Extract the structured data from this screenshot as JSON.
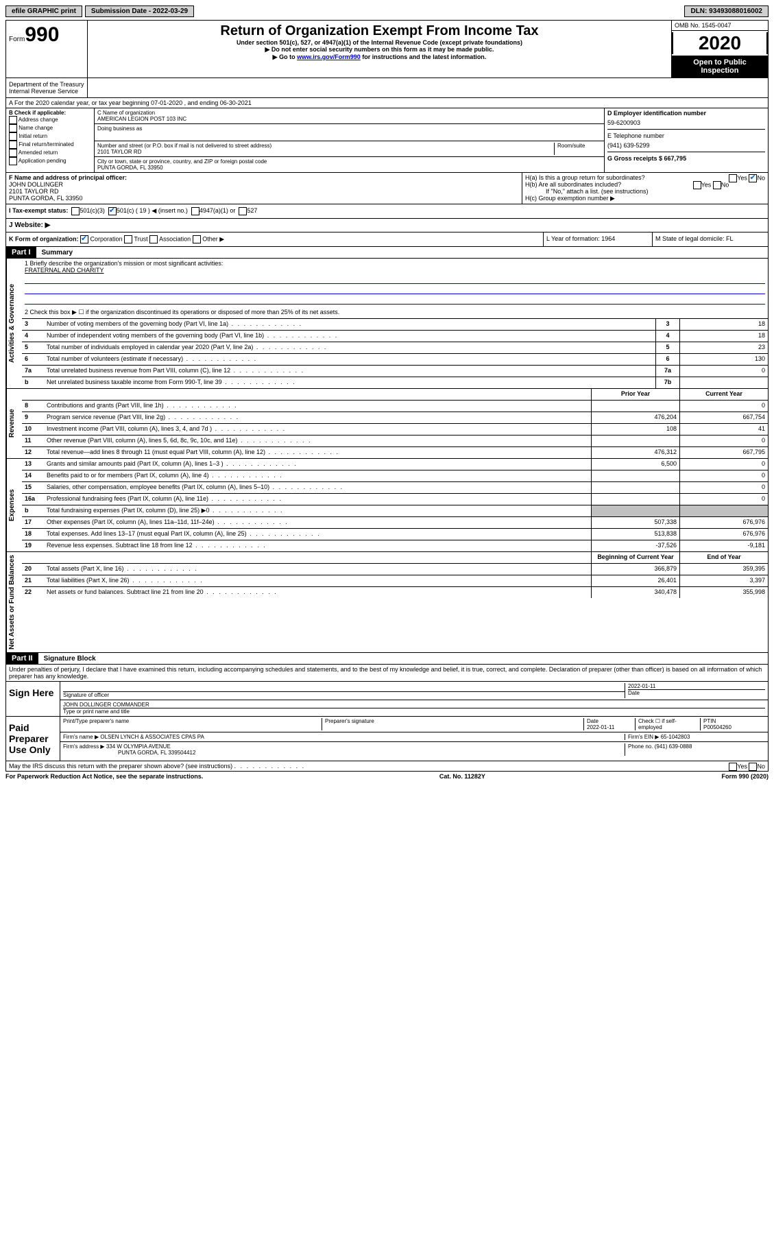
{
  "topbar": {
    "efile": "efile GRAPHIC print",
    "submission_label": "Submission Date - 2022-03-29",
    "dln_label": "DLN: 93493088016002"
  },
  "header": {
    "form_word": "Form",
    "form_num": "990",
    "dept": "Department of the Treasury\nInternal Revenue Service",
    "title": "Return of Organization Exempt From Income Tax",
    "subtitle": "Under section 501(c), 527, or 4947(a)(1) of the Internal Revenue Code (except private foundations)",
    "note1": "▶ Do not enter social security numbers on this form as it may be made public.",
    "note2_pre": "▶ Go to ",
    "note2_link": "www.irs.gov/Form990",
    "note2_post": " for instructions and the latest information.",
    "omb": "OMB No. 1545-0047",
    "year": "2020",
    "inspection": "Open to Public Inspection"
  },
  "section_a": "A For the 2020 calendar year, or tax year beginning 07-01-2020   , and ending 06-30-2021",
  "col_b": {
    "label": "B Check if applicable:",
    "items": [
      "Address change",
      "Name change",
      "Initial return",
      "Final return/terminated",
      "Amended return",
      "Application pending"
    ]
  },
  "col_c": {
    "name_label": "C Name of organization",
    "name": "AMERICAN LEGION POST 103 INC",
    "dba_label": "Doing business as",
    "addr_label": "Number and street (or P.O. box if mail is not delivered to street address)",
    "room_label": "Room/suite",
    "addr": "2101 TAYLOR RD",
    "city_label": "City or town, state or province, country, and ZIP or foreign postal code",
    "city": "PUNTA GORDA, FL  33950"
  },
  "col_d": {
    "ein_label": "D Employer identification number",
    "ein": "59-6200903",
    "tel_label": "E Telephone number",
    "tel": "(941) 639-5299",
    "gross_label": "G Gross receipts $ 667,795"
  },
  "section_f": {
    "label": "F  Name and address of principal officer:",
    "name": "JOHN DOLLINGER",
    "addr1": "2101 TAYLOR RD",
    "addr2": "PUNTA GORDA, FL  33950"
  },
  "section_h": {
    "ha": "H(a)  Is this a group return for subordinates?",
    "hb": "H(b)  Are all subordinates included?",
    "hb_note": "If \"No,\" attach a list. (see instructions)",
    "hc": "H(c)  Group exemption number ▶",
    "yes": "Yes",
    "no": "No"
  },
  "section_i": {
    "label": "I  Tax-exempt status:",
    "opt1": "501(c)(3)",
    "opt2": "501(c) ( 19 ) ◀ (insert no.)",
    "opt3": "4947(a)(1) or",
    "opt4": "527"
  },
  "section_j": "J  Website: ▶",
  "section_k": "K Form of organization:",
  "k_opts": [
    "Corporation",
    "Trust",
    "Association",
    "Other ▶"
  ],
  "section_l": "L Year of formation: 1964",
  "section_m": "M State of legal domicile: FL",
  "part1": {
    "header": "Part I",
    "title": "Summary",
    "line1_label": "1  Briefly describe the organization's mission or most significant activities:",
    "line1_val": "FRATERNAL AND CHARITY",
    "line2": "2    Check this box ▶ ☐  if the organization discontinued its operations or disposed of more than 25% of its net assets.",
    "lines": [
      {
        "n": "3",
        "desc": "Number of voting members of the governing body (Part VI, line 1a)",
        "box": "3",
        "val": "18"
      },
      {
        "n": "4",
        "desc": "Number of independent voting members of the governing body (Part VI, line 1b)",
        "box": "4",
        "val": "18"
      },
      {
        "n": "5",
        "desc": "Total number of individuals employed in calendar year 2020 (Part V, line 2a)",
        "box": "5",
        "val": "23"
      },
      {
        "n": "6",
        "desc": "Total number of volunteers (estimate if necessary)",
        "box": "6",
        "val": "130"
      },
      {
        "n": "7a",
        "desc": "Total unrelated business revenue from Part VIII, column (C), line 12",
        "box": "7a",
        "val": "0"
      },
      {
        "n": "b",
        "desc": "Net unrelated business taxable income from Form 990-T, line 39",
        "box": "7b",
        "val": ""
      }
    ],
    "col_prior": "Prior Year",
    "col_current": "Current Year",
    "revenue": [
      {
        "n": "8",
        "desc": "Contributions and grants (Part VIII, line 1h)",
        "prior": "",
        "current": "0"
      },
      {
        "n": "9",
        "desc": "Program service revenue (Part VIII, line 2g)",
        "prior": "476,204",
        "current": "667,754"
      },
      {
        "n": "10",
        "desc": "Investment income (Part VIII, column (A), lines 3, 4, and 7d )",
        "prior": "108",
        "current": "41"
      },
      {
        "n": "11",
        "desc": "Other revenue (Part VIII, column (A), lines 5, 6d, 8c, 9c, 10c, and 11e)",
        "prior": "",
        "current": "0"
      },
      {
        "n": "12",
        "desc": "Total revenue—add lines 8 through 11 (must equal Part VIII, column (A), line 12)",
        "prior": "476,312",
        "current": "667,795"
      }
    ],
    "expenses": [
      {
        "n": "13",
        "desc": "Grants and similar amounts paid (Part IX, column (A), lines 1–3 )",
        "prior": "6,500",
        "current": "0"
      },
      {
        "n": "14",
        "desc": "Benefits paid to or for members (Part IX, column (A), line 4)",
        "prior": "",
        "current": "0"
      },
      {
        "n": "15",
        "desc": "Salaries, other compensation, employee benefits (Part IX, column (A), lines 5–10)",
        "prior": "",
        "current": "0"
      },
      {
        "n": "16a",
        "desc": "Professional fundraising fees (Part IX, column (A), line 11e)",
        "prior": "",
        "current": "0"
      },
      {
        "n": "b",
        "desc": "Total fundraising expenses (Part IX, column (D), line 25) ▶0",
        "prior": "shaded",
        "current": "shaded"
      },
      {
        "n": "17",
        "desc": "Other expenses (Part IX, column (A), lines 11a–11d, 11f–24e)",
        "prior": "507,338",
        "current": "676,976"
      },
      {
        "n": "18",
        "desc": "Total expenses. Add lines 13–17 (must equal Part IX, column (A), line 25)",
        "prior": "513,838",
        "current": "676,976"
      },
      {
        "n": "19",
        "desc": "Revenue less expenses. Subtract line 18 from line 12",
        "prior": "-37,526",
        "current": "-9,181"
      }
    ],
    "col_begin": "Beginning of Current Year",
    "col_end": "End of Year",
    "assets": [
      {
        "n": "20",
        "desc": "Total assets (Part X, line 16)",
        "prior": "366,879",
        "current": "359,395"
      },
      {
        "n": "21",
        "desc": "Total liabilities (Part X, line 26)",
        "prior": "26,401",
        "current": "3,397"
      },
      {
        "n": "22",
        "desc": "Net assets or fund balances. Subtract line 21 from line 20",
        "prior": "340,478",
        "current": "355,998"
      }
    ],
    "vlabel_gov": "Activities & Governance",
    "vlabel_rev": "Revenue",
    "vlabel_exp": "Expenses",
    "vlabel_net": "Net Assets or Fund Balances"
  },
  "part2": {
    "header": "Part II",
    "title": "Signature Block",
    "declaration": "Under penalties of perjury, I declare that I have examined this return, including accompanying schedules and statements, and to the best of my knowledge and belief, it is true, correct, and complete. Declaration of preparer (other than officer) is based on all information of which preparer has any knowledge.",
    "sign_here": "Sign Here",
    "sig_officer": "Signature of officer",
    "sig_date": "2022-01-11",
    "sig_date_label": "Date",
    "officer_name": "JOHN DOLLINGER  COMMANDER",
    "officer_label": "Type or print name and title",
    "paid_prep": "Paid Preparer Use Only",
    "prep_name_label": "Print/Type preparer's name",
    "prep_sig_label": "Preparer's signature",
    "prep_date_label": "Date",
    "prep_date": "2022-01-11",
    "prep_check": "Check ☐  if self-employed",
    "ptin_label": "PTIN",
    "ptin": "P00504260",
    "firm_name_label": "Firm's name    ▶",
    "firm_name": "OLSEN LYNCH & ASSOCIATES CPAS PA",
    "firm_ein_label": "Firm's EIN ▶",
    "firm_ein": "65-1042803",
    "firm_addr_label": "Firm's address ▶",
    "firm_addr": "334 W OLYMPIA AVENUE",
    "firm_city": "PUNTA GORDA, FL  339504412",
    "phone_label": "Phone no.",
    "phone": "(941) 639-0888",
    "discuss": "May the IRS discuss this return with the preparer shown above? (see instructions)"
  },
  "footer": {
    "left": "For Paperwork Reduction Act Notice, see the separate instructions.",
    "center": "Cat. No. 11282Y",
    "right": "Form 990 (2020)"
  }
}
